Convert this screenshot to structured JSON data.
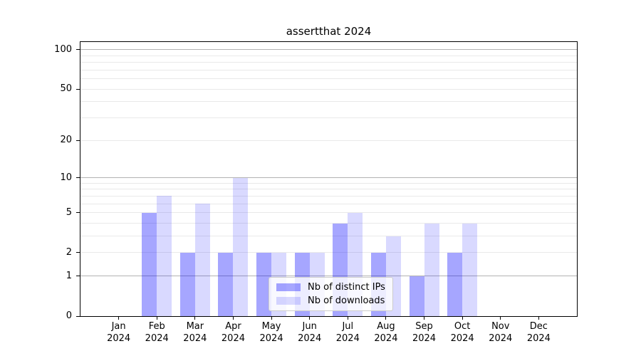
{
  "chart_data": {
    "type": "bar",
    "title": "assertthat 2024",
    "categories": [
      "Jan",
      "Feb",
      "Mar",
      "Apr",
      "May",
      "Jun",
      "Jul",
      "Aug",
      "Sep",
      "Oct",
      "Nov",
      "Dec"
    ],
    "category_year_line": "2024",
    "series": [
      {
        "name": "Nb of distinct IPs",
        "color_hex": "#a6a6ff",
        "css_color": "rgba(0, 0, 255, 0.35)",
        "values": [
          0,
          5,
          2,
          2,
          2,
          2,
          4,
          2,
          1,
          2,
          0,
          0
        ]
      },
      {
        "name": "Nb of downloads",
        "color_hex": "#d9d9ff",
        "css_color": "rgba(0, 0, 255, 0.15)",
        "values": [
          0,
          7,
          6,
          10,
          2,
          2,
          5,
          3,
          4,
          4,
          0,
          0
        ]
      }
    ],
    "y_axis": {
      "scale": "log1p",
      "tick_values": [
        0,
        1,
        2,
        5,
        10,
        20,
        50,
        100
      ],
      "tick_labels": [
        "0",
        "1",
        "2",
        "5",
        "10",
        "20",
        "50",
        "100"
      ],
      "major_gridlines": [
        1,
        10,
        100
      ],
      "minor_gridlines": [
        2,
        3,
        4,
        5,
        6,
        7,
        8,
        9,
        20,
        30,
        40,
        50,
        60,
        70,
        80,
        90
      ],
      "axis_max": 114.5
    },
    "legend": {
      "position": "lower center",
      "entries": [
        "Nb of distinct IPs",
        "Nb of downloads"
      ]
    },
    "colors": {
      "major_grid": "#b3b3b3",
      "minor_grid": "#e9e9e9",
      "spine": "#000000",
      "text": "#000000",
      "background": "#ffffff"
    },
    "grid": "on (major + minor, horizontal only)"
  }
}
